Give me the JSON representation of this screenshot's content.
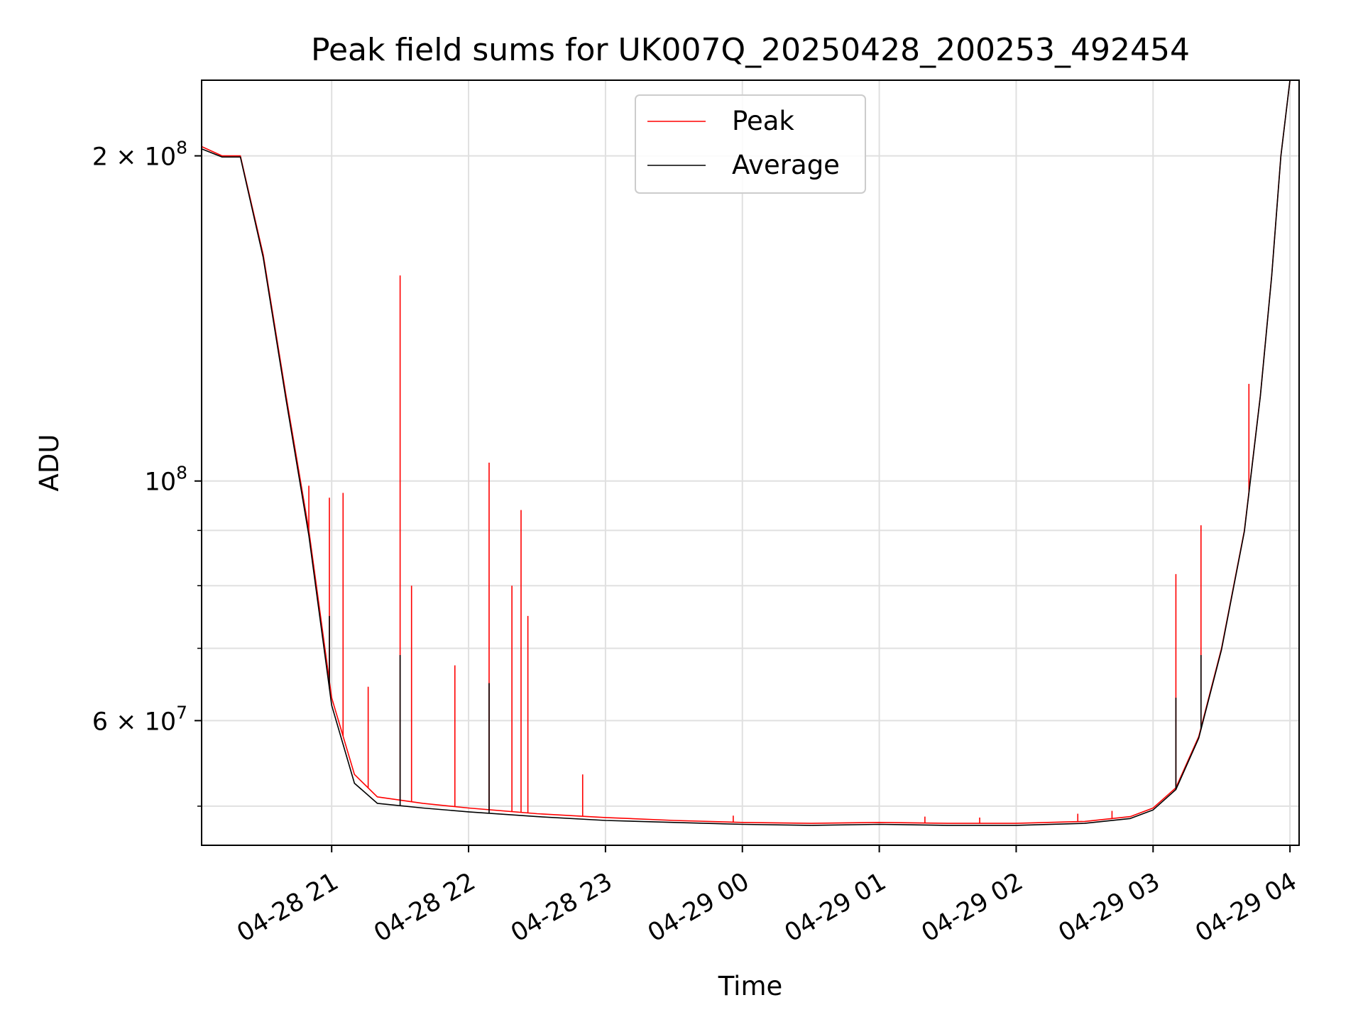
{
  "chart_data": {
    "type": "line",
    "title": "Peak field sums for UK007Q_20250428_200253_492454",
    "xlabel": "Time",
    "ylabel": "ADU",
    "y_scale": "log",
    "grid": true,
    "legend_position": "upper center",
    "xlim": [
      "2025-04-28 20:03",
      "2025-04-29 04:04"
    ],
    "ylim": [
      46000000,
      235000000
    ],
    "x_ticks": [
      "04-28 21",
      "04-28 22",
      "04-28 23",
      "04-29 00",
      "04-29 01",
      "04-29 02",
      "04-29 03",
      "04-29 04"
    ],
    "y_ticks": [
      {
        "value": 200000000,
        "base": "2 × 10",
        "exp": "8"
      },
      {
        "value": 100000000,
        "base": "10",
        "exp": "8"
      },
      {
        "value": 60000000,
        "base": "6 × 10",
        "exp": "7"
      }
    ],
    "colors": {
      "peak": "#ff0000",
      "average": "#000000"
    },
    "series": [
      {
        "name": "Peak",
        "color": "#ff0000",
        "x": [
          "2025-04-28 20:03",
          "2025-04-28 20:12",
          "2025-04-28 20:20",
          "2025-04-28 20:30",
          "2025-04-28 20:40",
          "2025-04-28 20:50",
          "2025-04-28 21:00",
          "2025-04-28 21:10",
          "2025-04-28 21:20",
          "2025-04-28 21:40",
          "2025-04-28 22:00",
          "2025-04-28 22:30",
          "2025-04-28 23:00",
          "2025-04-28 23:30",
          "2025-04-29 00:00",
          "2025-04-29 00:30",
          "2025-04-29 01:00",
          "2025-04-29 01:30",
          "2025-04-29 02:00",
          "2025-04-29 02:30",
          "2025-04-29 02:50",
          "2025-04-29 03:00",
          "2025-04-29 03:10",
          "2025-04-29 03:20",
          "2025-04-29 03:30",
          "2025-04-29 03:40",
          "2025-04-29 03:47",
          "2025-04-29 03:52",
          "2025-04-29 03:56",
          "2025-04-29 04:00"
        ],
        "values": [
          204000000,
          200000000,
          200000000,
          162000000,
          120000000,
          90000000,
          63000000,
          53500000,
          51000000,
          50300000,
          49800000,
          49200000,
          48800000,
          48500000,
          48300000,
          48200000,
          48300000,
          48200000,
          48200000,
          48400000,
          48900000,
          49800000,
          52000000,
          58000000,
          70000000,
          90000000,
          120000000,
          155000000,
          200000000,
          235000000
        ],
        "spikes": [
          {
            "x": "2025-04-28 20:50",
            "value": 99000000
          },
          {
            "x": "2025-04-28 20:59",
            "value": 96500000
          },
          {
            "x": "2025-04-28 21:05",
            "value": 97500000
          },
          {
            "x": "2025-04-28 21:16",
            "value": 64500000
          },
          {
            "x": "2025-04-28 21:30",
            "value": 155000000
          },
          {
            "x": "2025-04-28 21:35",
            "value": 80000000
          },
          {
            "x": "2025-04-28 21:54",
            "value": 67500000
          },
          {
            "x": "2025-04-28 22:09",
            "value": 104000000
          },
          {
            "x": "2025-04-28 22:19",
            "value": 80000000
          },
          {
            "x": "2025-04-28 22:23",
            "value": 94000000
          },
          {
            "x": "2025-04-28 22:26",
            "value": 75000000
          },
          {
            "x": "2025-04-28 22:50",
            "value": 53500000
          },
          {
            "x": "2025-04-28 23:56",
            "value": 49000000
          },
          {
            "x": "2025-04-29 01:20",
            "value": 48900000
          },
          {
            "x": "2025-04-29 01:44",
            "value": 48800000
          },
          {
            "x": "2025-04-29 02:27",
            "value": 49200000
          },
          {
            "x": "2025-04-29 02:42",
            "value": 49500000
          },
          {
            "x": "2025-04-29 03:10",
            "value": 82000000
          },
          {
            "x": "2025-04-29 03:21",
            "value": 91000000
          },
          {
            "x": "2025-04-29 03:42",
            "value": 123000000
          }
        ]
      },
      {
        "name": "Average",
        "color": "#000000",
        "x": [
          "2025-04-28 20:03",
          "2025-04-28 20:12",
          "2025-04-28 20:20",
          "2025-04-28 20:30",
          "2025-04-28 20:40",
          "2025-04-28 20:50",
          "2025-04-28 21:00",
          "2025-04-28 21:10",
          "2025-04-28 21:20",
          "2025-04-28 21:40",
          "2025-04-28 22:00",
          "2025-04-28 22:30",
          "2025-04-28 23:00",
          "2025-04-28 23:30",
          "2025-04-29 00:00",
          "2025-04-29 00:30",
          "2025-04-29 01:00",
          "2025-04-29 01:30",
          "2025-04-29 02:00",
          "2025-04-29 02:30",
          "2025-04-29 02:50",
          "2025-04-29 03:00",
          "2025-04-29 03:10",
          "2025-04-29 03:20",
          "2025-04-29 03:30",
          "2025-04-29 03:40",
          "2025-04-29 03:47",
          "2025-04-29 03:52",
          "2025-04-29 03:56",
          "2025-04-29 04:00"
        ],
        "values": [
          203000000,
          199500000,
          199500000,
          161000000,
          119000000,
          89000000,
          62000000,
          52500000,
          50300000,
          49800000,
          49400000,
          48900000,
          48500000,
          48300000,
          48100000,
          48000000,
          48100000,
          48000000,
          48000000,
          48200000,
          48700000,
          49600000,
          51800000,
          57800000,
          69800000,
          89800000,
          119800000,
          154800000,
          199800000,
          235000000
        ],
        "spikes": [
          {
            "x": "2025-04-28 20:59",
            "value": 75000000
          },
          {
            "x": "2025-04-28 21:30",
            "value": 69000000
          },
          {
            "x": "2025-04-28 22:09",
            "value": 65000000
          },
          {
            "x": "2025-04-29 03:10",
            "value": 63000000
          },
          {
            "x": "2025-04-29 03:21",
            "value": 69000000
          }
        ]
      }
    ]
  }
}
